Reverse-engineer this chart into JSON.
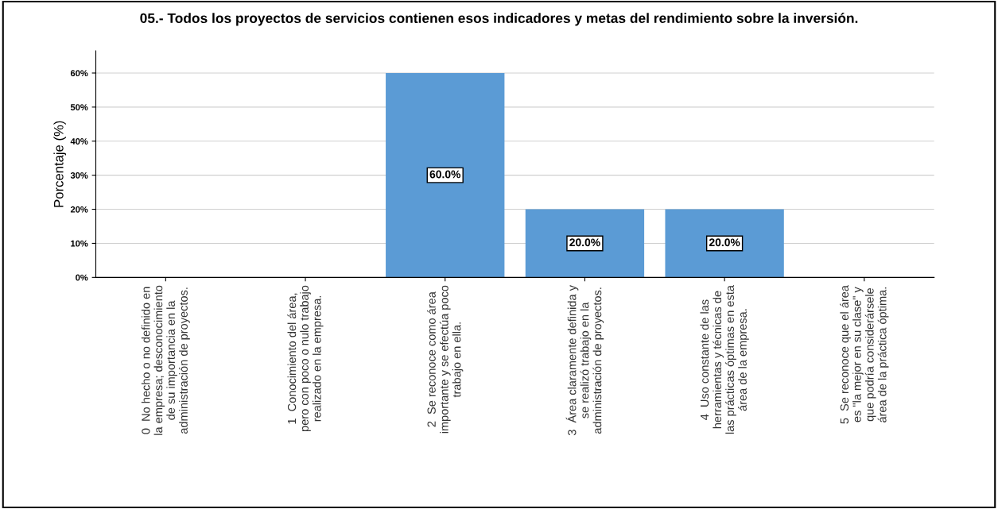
{
  "chart_data": {
    "type": "bar",
    "title": "05.- Todos los proyectos de servicios contienen esos indicadores y metas del rendimiento sobre la inversión.",
    "ylabel": "Porcentaje (%)",
    "categories": [
      "0  No hecho o no definido en\nla empresa; desconocimiento\nde su importancia en la\nadministración de proyectos.",
      "1  Conocimiento del área,\npero con poco o nulo trabajo\nrealizado en la empresa.",
      "2  Se reconoce como área\nimportante y se efectúa poco\ntrabajo en ella.",
      "3  Área claramente definida y\nse realizó trabajo en la\nadministración de proyectos.",
      "4  Uso constante de las\nherramientas y técnicas de\nlas prácticas óptimas en esta\nárea de la empresa.",
      "5  Se reconoce que el área\nes \"la mejor en su clase\" y\nque podría considerársele\nárea de la práctica óptima."
    ],
    "values": [
      0,
      0,
      60,
      20,
      20,
      0
    ],
    "value_labels": [
      null,
      null,
      "60.0%",
      "20.0%",
      "20.0%",
      null
    ],
    "color": "#5b9bd5",
    "ylim": [
      0,
      66.5
    ],
    "yticks": [
      {
        "value": 0,
        "label": "0%"
      },
      {
        "value": 10,
        "label": "10%"
      },
      {
        "value": 20,
        "label": "20%"
      },
      {
        "value": 30,
        "label": "30%"
      },
      {
        "value": 40,
        "label": "40%"
      },
      {
        "value": 50,
        "label": "50%"
      },
      {
        "value": 60,
        "label": "60%"
      }
    ],
    "grid": "y",
    "legend": false
  }
}
